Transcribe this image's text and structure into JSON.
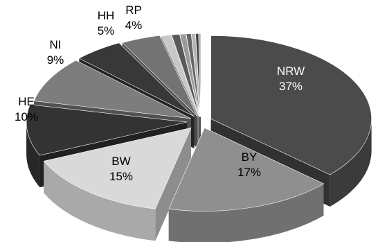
{
  "chart_data": {
    "type": "pie",
    "style": "3d-exploded",
    "legend": "none",
    "slices": [
      {
        "name": "NRW",
        "label": "NRW",
        "pct_label": "37%",
        "value": 37,
        "color": "#4b4b4b"
      },
      {
        "name": "BY",
        "label": "BY",
        "pct_label": "17%",
        "value": 17,
        "color": "#8f8f8f"
      },
      {
        "name": "BW",
        "label": "BW",
        "pct_label": "15%",
        "value": 15,
        "color": "#d9d9d9"
      },
      {
        "name": "HE",
        "label": "HE",
        "pct_label": "10%",
        "value": 10,
        "color": "#333333"
      },
      {
        "name": "NI",
        "label": "NI",
        "pct_label": "9%",
        "value": 9,
        "color": "#7d7d7d"
      },
      {
        "name": "HH",
        "label": "HH",
        "pct_label": "5%",
        "value": 5,
        "color": "#383838"
      },
      {
        "name": "RP",
        "label": "RP",
        "pct_label": "4%",
        "value": 4,
        "color": "#737373"
      },
      {
        "name": "",
        "label": "",
        "pct_label": "",
        "value": 1,
        "color": "#c8c8c8"
      },
      {
        "name": "",
        "label": "",
        "pct_label": "",
        "value": 0.8,
        "color": "#595959"
      },
      {
        "name": "",
        "label": "",
        "pct_label": "",
        "value": 0.6,
        "color": "#9a9a9a"
      },
      {
        "name": "",
        "label": "",
        "pct_label": "",
        "value": 0.5,
        "color": "#666666"
      },
      {
        "name": "",
        "label": "",
        "pct_label": "",
        "value": 0.4,
        "color": "#b5b5b5"
      },
      {
        "name": "",
        "label": "",
        "pct_label": "",
        "value": 0.3,
        "color": "#444444"
      },
      {
        "name": "",
        "label": "",
        "pct_label": "",
        "value": 0.2,
        "color": "#a6a6a6"
      }
    ]
  }
}
